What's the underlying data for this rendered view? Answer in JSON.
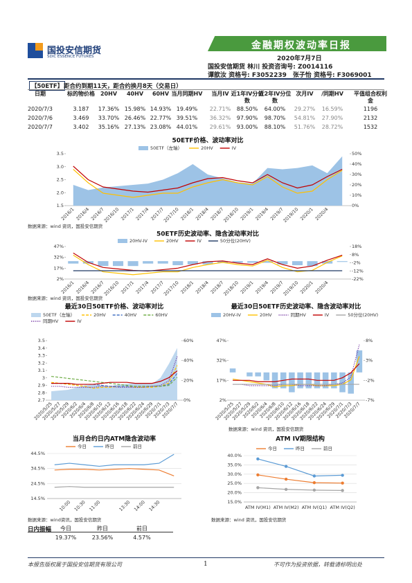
{
  "header": {
    "logo_cn": "国投安信期货",
    "logo_en": "SDIC ESSENCE FUTURES",
    "title": "金融期权波动率日报",
    "date": "2020年7月7日",
    "analyst1": "国投安信期货 林川 投资咨询号: Z0014116",
    "analyst2": "谭歆汝 资格号: F3052239　张子怡 资格号: F3069001"
  },
  "summary": {
    "tag": "【50ETF】",
    "text": "距合约到期11天，距合约换月8天（交易日）"
  },
  "table": {
    "columns": [
      "日期",
      "标的物价格",
      "20HV",
      "40HV",
      "60HV",
      "当月同期HV",
      "当月IV",
      "近1年IV分位数",
      "近2年IV分位数",
      "次月IV",
      "/同期HV",
      "平值组合权利金"
    ],
    "rows": [
      [
        "2020/7/3",
        "3.187",
        "17.36%",
        "15.98%",
        "14.93%",
        "19.49%",
        "22.71%",
        "88.50%",
        "64.00%",
        "29.27%",
        "16.59%",
        "1196"
      ],
      [
        "2020/7/6",
        "3.469",
        "33.70%",
        "26.46%",
        "22.77%",
        "39.51%",
        "36.32%",
        "97.90%",
        "98.70%",
        "54.81%",
        "27.90%",
        "2132"
      ],
      [
        "2020/7/7",
        "3.402",
        "35.16%",
        "27.13%",
        "23.08%",
        "44.01%",
        "29.61%",
        "93.00%",
        "88.10%",
        "51.76%",
        "28.72%",
        "1532"
      ]
    ]
  },
  "chart_data": [
    {
      "type": "combo",
      "title": "50ETF价格、波动率对比",
      "categories": [
        "2016/1",
        "2016/4",
        "2016/7",
        "2016/10",
        "2017/1",
        "2017/4",
        "2017/7",
        "2017/10",
        "2018/1",
        "2018/4",
        "2018/7",
        "2018/10",
        "2019/1",
        "2019/4",
        "2019/7",
        "2019/10",
        "2020/1",
        "2020/4",
        null
      ],
      "series": [
        {
          "name": "50ETF（左轴）",
          "kind": "area",
          "color": "#9dc3e6",
          "values": [
            2.3,
            2.1,
            2.2,
            2.25,
            2.3,
            2.35,
            2.5,
            2.75,
            3.1,
            2.7,
            2.55,
            2.4,
            2.35,
            2.95,
            2.9,
            2.95,
            3.05,
            2.75,
            3.4
          ]
        },
        {
          "name": "20HV",
          "kind": "line",
          "axis": "y2",
          "color": "#ffc000",
          "values": [
            35,
            22,
            12,
            10,
            8,
            10,
            12,
            12,
            18,
            22,
            25,
            22,
            20,
            28,
            18,
            12,
            14,
            25,
            34
          ]
        },
        {
          "name": "IV",
          "kind": "line",
          "axis": "y2",
          "color": "#c00000",
          "values": [
            38,
            25,
            18,
            16,
            14,
            13,
            15,
            17,
            22,
            26,
            27,
            24,
            22,
            30,
            22,
            17,
            20,
            28,
            35
          ]
        }
      ],
      "ylim": [
        1.5,
        3.5
      ],
      "yticks": [
        1.5,
        {
          "value": 2,
          "label": "2.0"
        },
        2.5,
        {
          "value": 3,
          "label": "3.0"
        },
        3.5
      ],
      "y2lim": [
        0,
        50
      ],
      "y2ticks": [
        {
          "value": 0,
          "label": "0%"
        },
        {
          "value": 10,
          "label": "10%"
        },
        {
          "value": 20,
          "label": "20%"
        },
        {
          "value": 30,
          "label": "30%"
        },
        {
          "value": 40,
          "label": "40%"
        },
        {
          "value": 50,
          "label": "50%"
        }
      ],
      "grid": false,
      "source": "数据来源：wind 资讯，国投安信期货"
    },
    {
      "type": "combo",
      "title": "50ETF历史波动率、隐含波动率对比",
      "categories": [
        "2016/1",
        "2016/4",
        "2016/7",
        "2016/10",
        "2017/1",
        "2017/4",
        "2017/7",
        "2017/10",
        "2018/1",
        "2018/4",
        "2018/7",
        "2018/10",
        "2019/1",
        "2019/4",
        "2019/7",
        "2019/10",
        "2020/1",
        "2020/4",
        null
      ],
      "series": [
        {
          "name": "20HV-IV",
          "kind": "bar",
          "axis": "y2",
          "color": "#9dc3e6",
          "values": [
            -3,
            -3,
            -6,
            -6,
            -6,
            -3,
            -3,
            -5,
            -4,
            -4,
            -2,
            -2,
            -2,
            -2,
            -4,
            -5,
            -6,
            -3,
            -1
          ]
        },
        {
          "name": "20HV",
          "kind": "line",
          "color": "#ffc000",
          "values": [
            35,
            22,
            12,
            10,
            8,
            10,
            12,
            12,
            18,
            22,
            25,
            22,
            20,
            28,
            18,
            12,
            14,
            25,
            34
          ]
        },
        {
          "name": "IV",
          "kind": "line",
          "color": "#c00000",
          "values": [
            38,
            25,
            18,
            16,
            14,
            13,
            15,
            17,
            22,
            26,
            27,
            24,
            22,
            30,
            22,
            17,
            20,
            28,
            35
          ]
        },
        {
          "name": "50分位(20HV)",
          "kind": "line",
          "color": "#1f3864",
          "values": [
            13.5,
            13.5,
            13.5,
            13.5,
            13.5,
            13.5,
            13.5,
            13.5,
            13.5,
            13.5,
            13.5,
            13.5,
            13.5,
            13.5,
            13.5,
            13.5,
            13.5,
            13.5,
            13.5
          ]
        }
      ],
      "ylim": [
        2,
        47
      ],
      "yticks": [
        {
          "value": 2,
          "label": "2%"
        },
        {
          "value": 17,
          "label": "17%"
        },
        {
          "value": 32,
          "label": "32%"
        },
        {
          "value": 47,
          "label": "47%"
        }
      ],
      "y2lim": [
        -22,
        18
      ],
      "y2ticks": [
        {
          "value": -22,
          "label": "-22%"
        },
        {
          "value": -12,
          "label": "-12%"
        },
        {
          "value": -2,
          "label": "-2%"
        },
        {
          "value": 8,
          "label": "8%"
        },
        {
          "value": 18,
          "label": "18%"
        }
      ],
      "grid": false,
      "source": "数据来源：wind 资讯，国投安信期货"
    },
    {
      "type": "combo",
      "title": "最近30日50ETF价格、波动率对比",
      "categories": [
        "2020/5/25",
        "2020/5/27",
        "2020/5/29",
        "2020/6/2",
        "2020/6/4",
        "2020/6/8",
        "2020/6/10",
        "2020/6/12",
        "2020/6/16",
        "2020/6/18",
        "2020/6/22",
        "2020/6/24",
        "2020/6/29",
        "2020/7/1",
        "2020/7/3",
        "2020/7/7"
      ],
      "series": [
        {
          "name": "50ETF（左轴）",
          "kind": "area",
          "color": "#bdd7ee",
          "values": [
            2.82,
            2.83,
            2.84,
            2.87,
            2.9,
            2.91,
            2.9,
            2.89,
            2.91,
            2.92,
            2.93,
            2.93,
            2.92,
            3.0,
            3.187,
            3.402
          ]
        },
        {
          "name": "20HV",
          "kind": "line",
          "axis": "y2",
          "color": "#ffc000",
          "style": "dashed",
          "values": [
            18,
            17,
            16,
            15,
            14,
            12,
            13,
            13,
            14,
            14,
            13,
            13,
            13,
            14,
            17.36,
            35.16
          ]
        },
        {
          "name": "40HV",
          "kind": "line",
          "axis": "y2",
          "color": "#4472c4",
          "style": "dashed",
          "values": [
            17,
            17,
            17,
            16,
            16,
            16,
            15,
            14,
            14,
            14,
            14,
            14,
            14,
            14,
            15.98,
            27.13
          ]
        },
        {
          "name": "60HV",
          "kind": "line",
          "axis": "y2",
          "color": "#70ad47",
          "style": "dashed",
          "values": [
            24,
            23,
            22,
            21,
            20,
            19,
            18,
            17,
            16,
            15,
            14,
            14,
            14,
            14,
            14.93,
            23.08
          ]
        },
        {
          "name": "同期HV",
          "kind": "line",
          "axis": "y2",
          "color": "#7030a0",
          "style": "dotted",
          "values": [
            14,
            14,
            13,
            13,
            13,
            13,
            14,
            14,
            13,
            13,
            13,
            13,
            14,
            15,
            19.49,
            44.01
          ]
        },
        {
          "name": "IV",
          "kind": "line",
          "axis": "y2",
          "color": "#c00000",
          "values": [
            17,
            17,
            17,
            16,
            16,
            16,
            17,
            18,
            18,
            18,
            17,
            17,
            17,
            19,
            22.71,
            29.61
          ]
        }
      ],
      "ylim": [
        2.7,
        3.5
      ],
      "yticks": [
        2.7,
        2.8,
        2.9,
        3,
        3.1,
        3.2,
        3.3,
        3.4,
        3.5
      ],
      "y2lim": [
        0,
        60
      ],
      "y2ticks": [
        {
          "value": 0,
          "label": "0%"
        },
        {
          "value": 20,
          "label": "20%"
        },
        {
          "value": 40,
          "label": "40%"
        },
        {
          "value": 60,
          "label": "60%"
        }
      ],
      "grid": false
    },
    {
      "type": "combo",
      "title": "最近30日50ETF历史波动率、隐含波动率对比",
      "categories": [
        "2020/5/25",
        "2020/5/27",
        "2020/5/29",
        "2020/6/2",
        "2020/6/4",
        "2020/6/8",
        "2020/6/10",
        "2020/6/12",
        "2020/6/16",
        "2020/6/18",
        "2020/6/22",
        "2020/6/24",
        "2020/6/29",
        "2020/7/1",
        "2020/7/3",
        "2020/7/7"
      ],
      "series": [
        {
          "name": "20HV-IV",
          "kind": "bar",
          "axis": "y2",
          "color": "#9dc3e6",
          "values": [
            1,
            0,
            -1,
            -1,
            -2,
            -4,
            -4,
            -5,
            -4,
            -4,
            -4,
            -4,
            -4,
            -5,
            -5.35,
            5.55
          ]
        },
        {
          "name": "20HV",
          "kind": "line",
          "color": "#ffc000",
          "values": [
            18,
            17,
            16,
            15,
            14,
            12,
            13,
            13,
            14,
            14,
            13,
            13,
            13,
            14,
            17.36,
            35.16
          ]
        },
        {
          "name": "同期HV",
          "kind": "line",
          "color": "#7030a0",
          "style": "dotted",
          "values": [
            14,
            14,
            13,
            13,
            13,
            13,
            14,
            14,
            13,
            13,
            13,
            13,
            14,
            15,
            19.49,
            44.01
          ]
        },
        {
          "name": "IV",
          "kind": "line",
          "color": "#c00000",
          "values": [
            17,
            17,
            17,
            16,
            16,
            16,
            17,
            18,
            18,
            18,
            17,
            17,
            17,
            19,
            22.71,
            29.61
          ]
        },
        {
          "name": "50分位(20HV)",
          "kind": "line",
          "color": "#a5a5a5",
          "values": [
            14,
            14,
            14,
            14,
            14,
            14,
            14,
            14,
            14,
            14,
            14,
            14,
            14,
            14,
            14,
            14
          ]
        }
      ],
      "ylim": [
        2,
        47
      ],
      "yticks": [
        {
          "value": 2,
          "label": "2%"
        },
        {
          "value": 17,
          "label": "17%"
        },
        {
          "value": 32,
          "label": "32%"
        },
        {
          "value": 47,
          "label": "47%"
        }
      ],
      "y2lim": [
        -7,
        8
      ],
      "y2ticks": [
        {
          "value": -7,
          "label": "-7%"
        },
        {
          "value": -2,
          "label": "-2%"
        },
        {
          "value": 3,
          "label": "3%"
        },
        {
          "value": 8,
          "label": "8%"
        }
      ],
      "grid": false,
      "source": "数据来源：wind 资讯，国投安信期货"
    },
    {
      "type": "line",
      "title": "当月合约日内ATM隐含波动率",
      "categories": [
        null,
        "10:00",
        "10:30",
        "11:00",
        null,
        "13:30",
        "14:00",
        "14:30",
        null
      ],
      "series": [
        {
          "name": "今日",
          "color": "#ed7d31",
          "values": [
            33.5,
            34,
            34,
            33.5,
            34,
            34.5,
            34,
            33.5,
            29.6
          ]
        },
        {
          "name": "昨日",
          "color": "#5b9bd5",
          "values": [
            37,
            38,
            37,
            36,
            37,
            37,
            37,
            38,
            44
          ]
        },
        {
          "name": "前日",
          "color": "#a5a5a5",
          "values": [
            22,
            22.5,
            22,
            22,
            22,
            22,
            22,
            22,
            22
          ]
        }
      ],
      "ylim": [
        14.5,
        44.5
      ],
      "yticks": [
        {
          "value": 14.5,
          "label": "14.5%"
        },
        {
          "value": 24.5,
          "label": "24.5%"
        },
        {
          "value": 34.5,
          "label": "34.5%"
        },
        {
          "value": 44.5,
          "label": "44.5%"
        }
      ],
      "grid": true,
      "source": "数据来源：wind资讯，国投安信期货"
    },
    {
      "type": "line",
      "title": "ATM IV期限结构",
      "markers": true,
      "categories": [
        "ATM IV(M1)",
        "ATM IV(M2)",
        "ATM IV(Q1)",
        "ATM IV(Q2)"
      ],
      "series": [
        {
          "name": "今日",
          "color": "#ed7d31",
          "values": [
            29.6,
            27.3,
            25.4,
            25.2
          ]
        },
        {
          "name": "昨日",
          "color": "#5b9bd5",
          "values": [
            38.2,
            34.2,
            29,
            29.4
          ]
        },
        {
          "name": "前日",
          "color": "#a5a5a5",
          "values": [
            22.7,
            21.8,
            21.4,
            21.2
          ]
        }
      ],
      "ylim": [
        15,
        40
      ],
      "yticks": [
        {
          "value": 15,
          "label": "15.0%"
        },
        {
          "value": 20,
          "label": "20.0%"
        },
        {
          "value": 25,
          "label": "25.0%"
        },
        {
          "value": 30,
          "label": "30.0%"
        },
        {
          "value": 35,
          "label": "35.0%"
        },
        {
          "value": 40,
          "label": "40.0%"
        }
      ],
      "grid": true,
      "source": "数据来源：wind 资讯，国投安信期货"
    }
  ],
  "amplitude": {
    "label": "日内振幅",
    "columns": [
      "今日",
      "昨日",
      "前日"
    ],
    "values": [
      "19.37%",
      "23.56%",
      "4.57%"
    ]
  },
  "footer": {
    "left": "本报告版权属于国投安信期货有限公司",
    "page": "1",
    "right": "不可作为投资依据，转载请标明出处"
  }
}
